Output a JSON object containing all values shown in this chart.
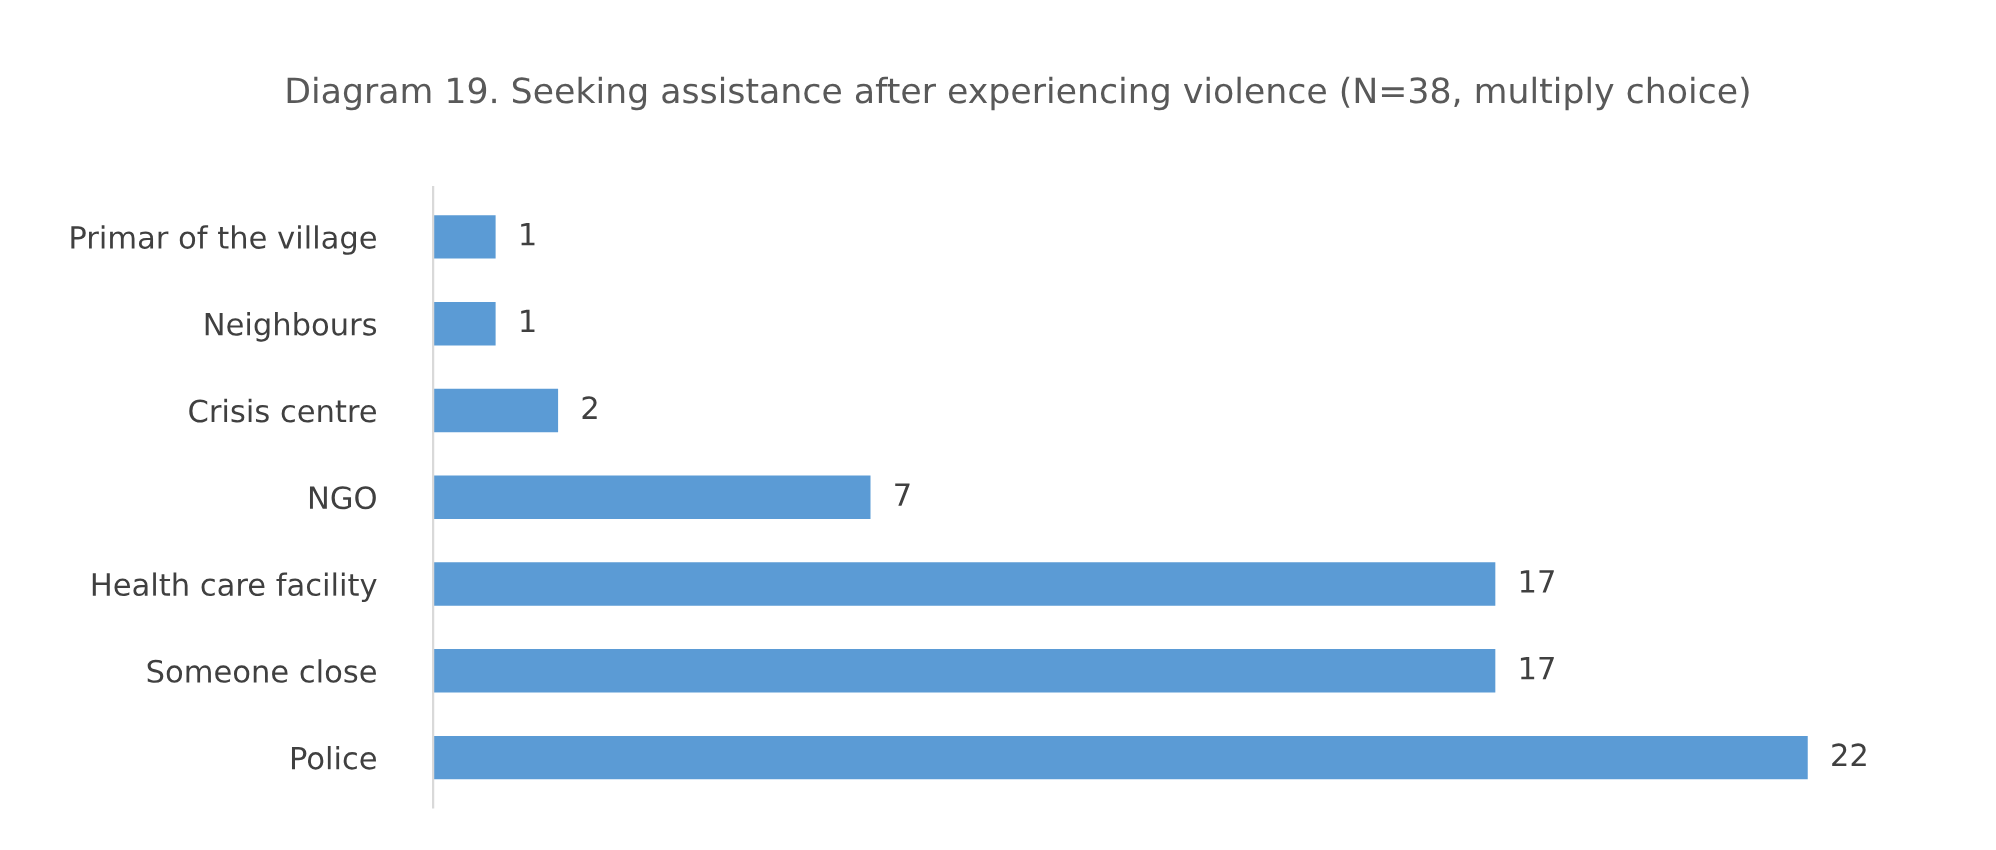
{
  "chart_data": {
    "type": "bar",
    "orientation": "horizontal",
    "title": "Diagram 19. Seeking assistance after experiencing violence (N=38, multiply choice)",
    "categories": [
      "Primar of the village",
      "Neighbours",
      "Crisis centre",
      "NGO",
      "Health care facility",
      "Someone close",
      "Police"
    ],
    "values": [
      1,
      1,
      2,
      7,
      17,
      17,
      22
    ],
    "color": "#5b9bd5",
    "data_labels": true,
    "tick_labels": "y",
    "grid": false,
    "legend": false
  }
}
